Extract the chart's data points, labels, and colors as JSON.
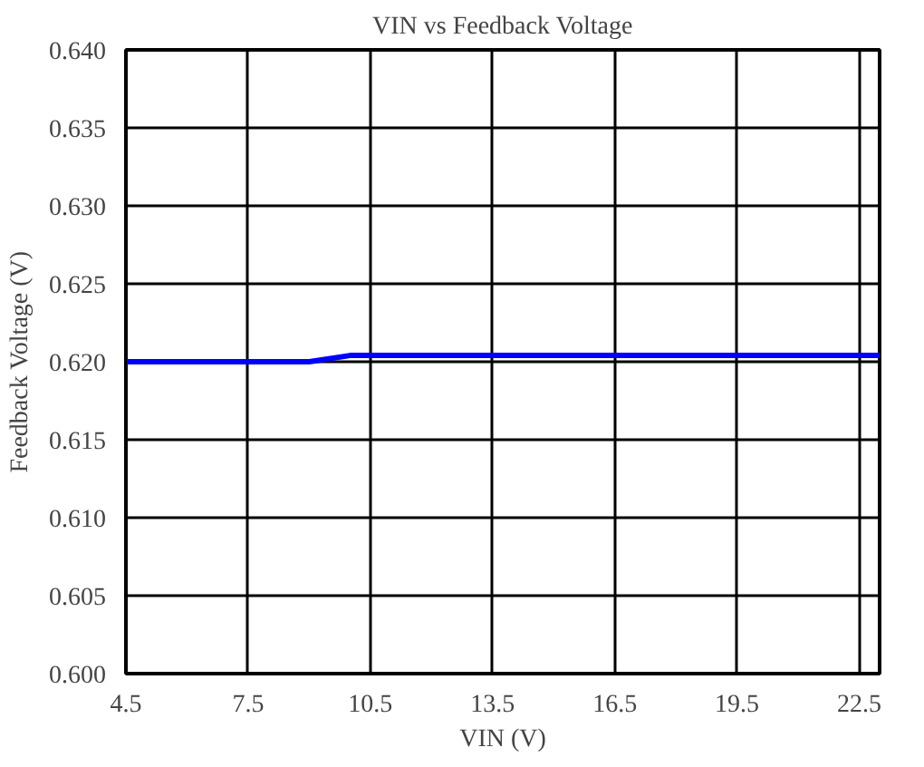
{
  "chart_data": {
    "type": "line",
    "title": "VIN vs Feedback Voltage",
    "xlabel": "VIN (V)",
    "ylabel": "Feedback Voltage (V)",
    "x": [
      4.5,
      9.0,
      10.0,
      23.0
    ],
    "series": [
      {
        "color": "#0000ff",
        "values": [
          0.62,
          0.62,
          0.6204,
          0.6204
        ]
      }
    ],
    "xlim": [
      4.5,
      23
    ],
    "xticks": [
      4.5,
      7.5,
      10.5,
      13.5,
      16.5,
      19.5,
      22.5
    ],
    "ylim": [
      0.6,
      0.64
    ],
    "yticks": [
      {
        "value": 0.6,
        "label": "0.600"
      },
      {
        "value": 0.605,
        "label": "0.605"
      },
      {
        "value": 0.61,
        "label": "0.610"
      },
      {
        "value": 0.615,
        "label": "0.615"
      },
      {
        "value": 0.62,
        "label": "0.620"
      },
      {
        "value": 0.625,
        "label": "0.625"
      },
      {
        "value": 0.63,
        "label": "0.630"
      },
      {
        "value": 0.635,
        "label": "0.635"
      },
      {
        "value": 0.64,
        "label": "0.640"
      }
    ],
    "grid": true,
    "marker": "none",
    "line_style": "solid"
  }
}
